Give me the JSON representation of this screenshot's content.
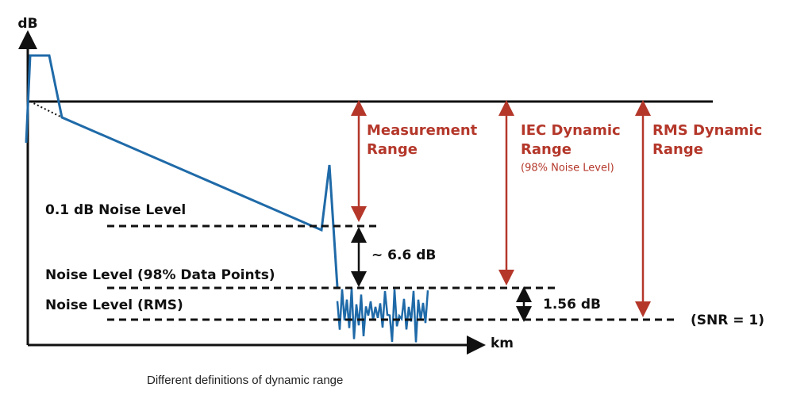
{
  "axes": {
    "y_label": "dB",
    "x_label": "km"
  },
  "ranges": {
    "measurement": [
      "Measurement",
      "Range"
    ],
    "iec": [
      "IEC Dynamic",
      "Range",
      "(98% Noise Level)"
    ],
    "rms": [
      "RMS Dynamic",
      "Range"
    ]
  },
  "levels": {
    "noise_01db": "0.1 dB Noise Level",
    "noise_98": "Noise Level (98% Data Points)",
    "noise_rms": "Noise Level (RMS)",
    "snr": "(SNR = 1)"
  },
  "gaps": {
    "gap_66": "~ 6.6 dB",
    "gap_156": "1.56 dB"
  },
  "caption": "Different definitions of dynamic range"
}
